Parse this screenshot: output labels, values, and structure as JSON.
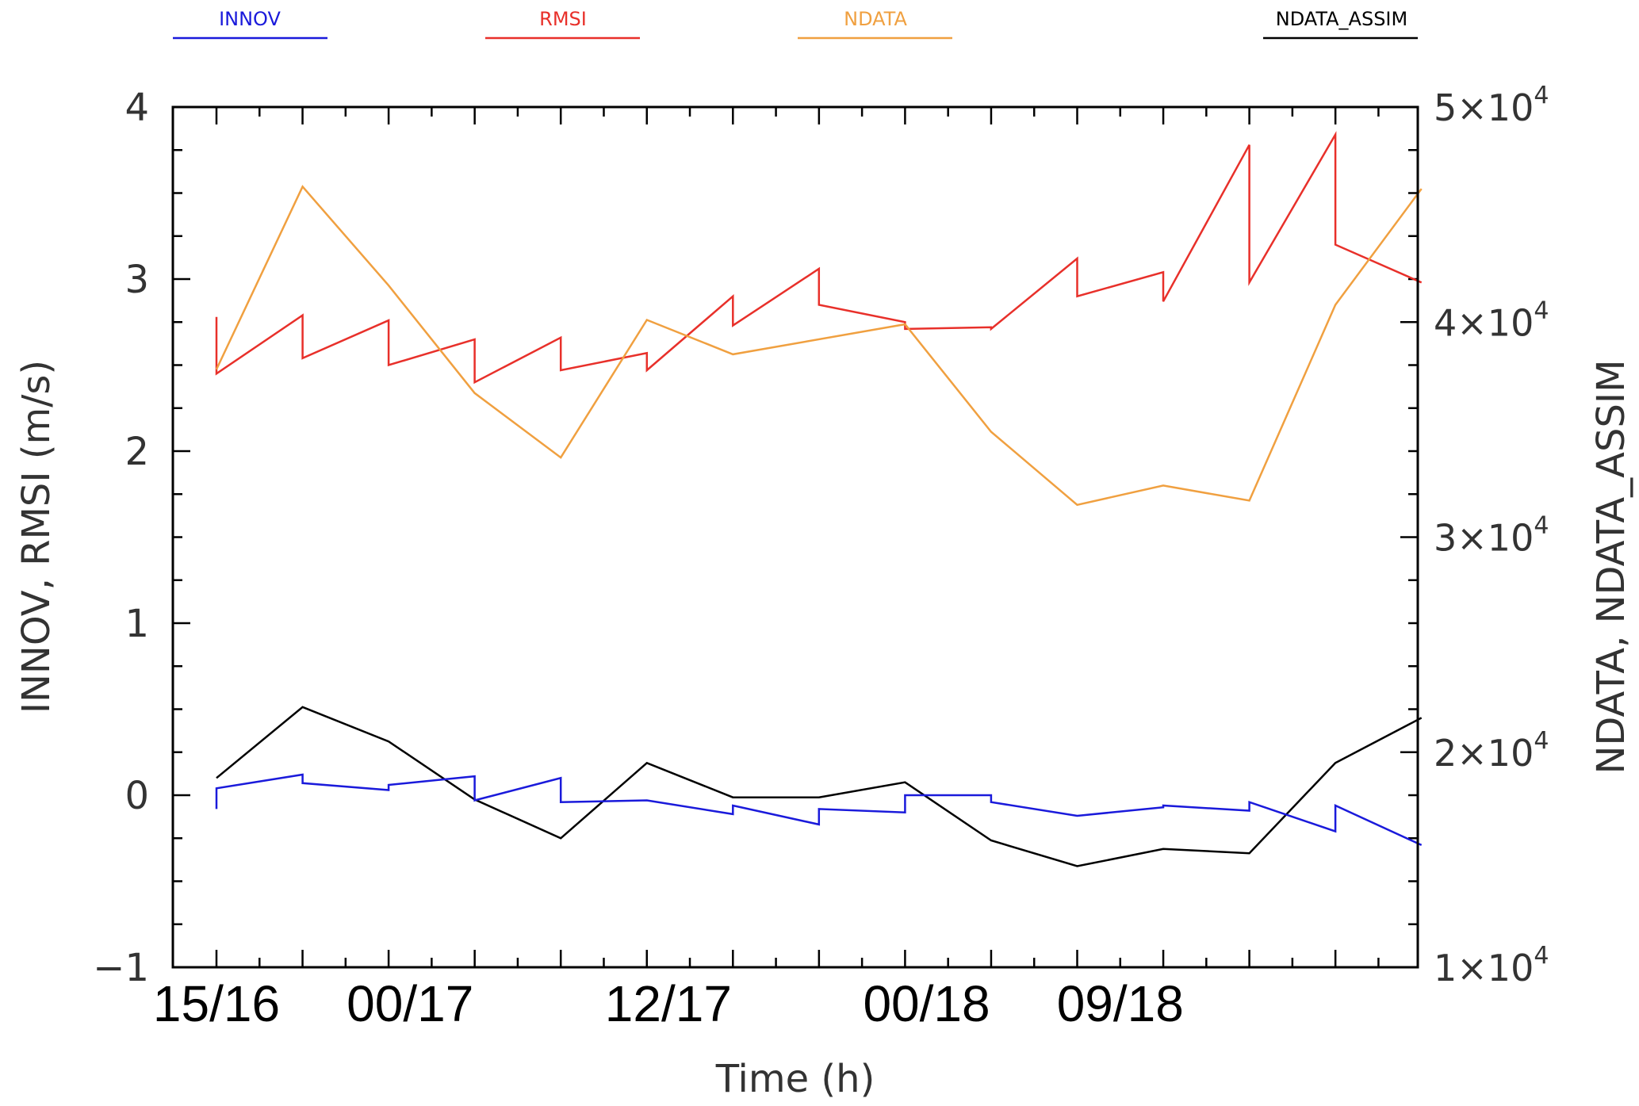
{
  "chart_data": {
    "type": "line",
    "legend": [
      {
        "name": "INNOV",
        "color": "#1a1adb"
      },
      {
        "name": "RMSI",
        "color": "#e8302a"
      },
      {
        "name": "NDATA",
        "color": "#f0a040"
      },
      {
        "name": "NDATA_ASSIM",
        "color": "#000000"
      }
    ],
    "xlabel": "Time (h)",
    "ylabel_left": "INNOV, RMSI (m/s)",
    "ylabel_right": "NDATA, NDATA_ASSIM",
    "x_range": [
      0,
      69
    ],
    "x_tick_labels": [
      {
        "x": 0,
        "label": "15/16"
      },
      {
        "x": 9,
        "label": "00/17"
      },
      {
        "x": 21,
        "label": "12/17"
      },
      {
        "x": 33,
        "label": "00/18"
      },
      {
        "x": 42,
        "label": "09/18"
      }
    ],
    "ylim_left": [
      -1,
      4
    ],
    "yticks_left": [
      {
        "v": -1,
        "label": "−1"
      },
      {
        "v": 0,
        "label": "0"
      },
      {
        "v": 1,
        "label": "1"
      },
      {
        "v": 2,
        "label": "2"
      },
      {
        "v": 3,
        "label": "3"
      },
      {
        "v": 4,
        "label": "4"
      }
    ],
    "ylim_right": [
      10000,
      50000
    ],
    "yticks_right": [
      {
        "v": 10000,
        "mant": "1×10",
        "exp": "4"
      },
      {
        "v": 20000,
        "mant": "2×10",
        "exp": "4"
      },
      {
        "v": 30000,
        "mant": "3×10",
        "exp": "4"
      },
      {
        "v": 40000,
        "mant": "4×10",
        "exp": "4"
      },
      {
        "v": 50000,
        "mant": "5×10",
        "exp": "4"
      }
    ],
    "series": [
      {
        "name": "RMSI",
        "axis": "left",
        "color": "#e8302a",
        "points": [
          [
            0,
            2.78
          ],
          [
            0,
            2.45
          ],
          [
            4,
            2.79
          ],
          [
            4,
            2.54
          ],
          [
            8,
            2.76
          ],
          [
            8,
            2.5
          ],
          [
            12,
            2.65
          ],
          [
            12,
            2.4
          ],
          [
            16,
            2.66
          ],
          [
            16,
            2.47
          ],
          [
            20,
            2.57
          ],
          [
            20,
            2.47
          ],
          [
            24,
            2.9
          ],
          [
            24,
            2.73
          ],
          [
            28,
            3.06
          ],
          [
            28,
            2.85
          ],
          [
            32,
            2.75
          ],
          [
            32,
            2.71
          ],
          [
            36,
            2.72
          ],
          [
            36,
            2.71
          ],
          [
            40,
            3.12
          ],
          [
            40,
            2.9
          ],
          [
            44,
            3.04
          ],
          [
            44,
            2.87
          ],
          [
            48,
            3.78
          ],
          [
            48,
            2.98
          ],
          [
            52,
            3.84
          ],
          [
            52,
            3.2
          ],
          [
            56,
            2.98
          ]
        ]
      },
      {
        "name": "NDATA",
        "axis": "right",
        "color": "#f0a040",
        "points": [
          [
            0,
            37800
          ],
          [
            4,
            46300
          ],
          [
            8,
            41700
          ],
          [
            12,
            36700
          ],
          [
            16,
            33700
          ],
          [
            20,
            40100
          ],
          [
            24,
            38500
          ],
          [
            32,
            39900
          ],
          [
            36,
            34900
          ],
          [
            40,
            31500
          ],
          [
            44,
            32400
          ],
          [
            48,
            31700
          ],
          [
            52,
            40800
          ],
          [
            56,
            46200
          ]
        ]
      },
      {
        "name": "NDATA_ASSIM",
        "axis": "right",
        "color": "#000000",
        "points": [
          [
            0,
            18800
          ],
          [
            4,
            22100
          ],
          [
            8,
            20500
          ],
          [
            12,
            17800
          ],
          [
            16,
            16000
          ],
          [
            20,
            19500
          ],
          [
            24,
            17900
          ],
          [
            28,
            17900
          ],
          [
            32,
            18600
          ],
          [
            36,
            15900
          ],
          [
            40,
            14700
          ],
          [
            44,
            15500
          ],
          [
            48,
            15300
          ],
          [
            52,
            19500
          ],
          [
            56,
            21600
          ]
        ]
      },
      {
        "name": "INNOV",
        "axis": "left",
        "color": "#1a1adb",
        "points": [
          [
            0,
            -0.08
          ],
          [
            0,
            0.04
          ],
          [
            4,
            0.12
          ],
          [
            4,
            0.07
          ],
          [
            8,
            0.03
          ],
          [
            8,
            0.06
          ],
          [
            12,
            0.11
          ],
          [
            12,
            -0.03
          ],
          [
            16,
            0.1
          ],
          [
            16,
            -0.04
          ],
          [
            20,
            -0.03
          ],
          [
            24,
            -0.11
          ],
          [
            24,
            -0.06
          ],
          [
            28,
            -0.17
          ],
          [
            28,
            -0.08
          ],
          [
            32,
            -0.1
          ],
          [
            32,
            0.0
          ],
          [
            36,
            0.0
          ],
          [
            36,
            -0.04
          ],
          [
            40,
            -0.12
          ],
          [
            44,
            -0.07
          ],
          [
            44,
            -0.06
          ],
          [
            48,
            -0.09
          ],
          [
            48,
            -0.04
          ],
          [
            52,
            -0.21
          ],
          [
            52,
            -0.06
          ],
          [
            56,
            -0.29
          ]
        ]
      }
    ]
  }
}
